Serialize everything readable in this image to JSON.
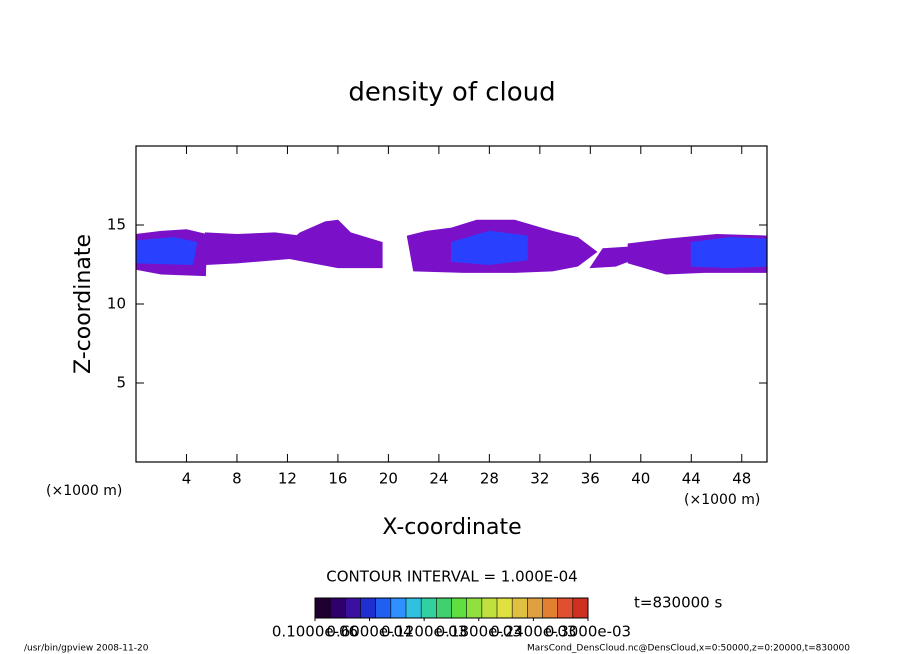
{
  "chart_data": {
    "type": "contour",
    "title": "density of cloud",
    "x_label": "X-coordinate",
    "y_label": "Z-coordinate",
    "x_unit": "(×1000 m)",
    "xlim": [
      0,
      50
    ],
    "ylim": [
      0,
      20
    ],
    "xticks": [
      4,
      8,
      12,
      16,
      20,
      24,
      28,
      32,
      36,
      40,
      44,
      48
    ],
    "yticks": [
      5,
      10,
      15
    ],
    "contour_interval": "CONTOUR INTERVAL = 1.000E-04",
    "time_label": "t=830000 s",
    "regions": [
      {
        "color": "#7a10c8",
        "x": [
          0,
          2,
          5.5,
          5.6,
          4,
          2,
          0
        ],
        "z": [
          12.2,
          11.9,
          11.8,
          14.4,
          14.7,
          14.6,
          14.4
        ]
      },
      {
        "color": "#2a40ff",
        "x": [
          0,
          4.5,
          4.8,
          3,
          0
        ],
        "z": [
          12.6,
          12.5,
          13.9,
          14.2,
          14.0
        ]
      },
      {
        "color": "#7a10c8",
        "x": [
          5.5,
          8,
          11,
          14,
          14,
          11,
          8,
          5.5
        ],
        "z": [
          12.5,
          12.6,
          12.8,
          13.0,
          14.2,
          14.5,
          14.4,
          14.5
        ]
      },
      {
        "color": "#7a10c8",
        "x": [
          12,
          16,
          19.5,
          19.5,
          17,
          16,
          15,
          13,
          12
        ],
        "z": [
          12.9,
          12.3,
          12.3,
          13.9,
          14.5,
          15.3,
          15.2,
          14.5,
          13.8
        ]
      },
      {
        "color": "#7a10c8",
        "x": [
          22,
          26,
          30,
          33,
          35,
          36.5,
          35,
          33,
          30,
          27,
          25,
          23,
          21.5
        ],
        "z": [
          12.1,
          12.0,
          12.0,
          12.1,
          12.4,
          13.3,
          14.2,
          14.6,
          15.3,
          15.3,
          14.8,
          14.6,
          14.3
        ]
      },
      {
        "color": "#2a40ff",
        "x": [
          25,
          28,
          31,
          31,
          28,
          25
        ],
        "z": [
          12.7,
          12.5,
          12.8,
          14.3,
          14.6,
          13.9
        ]
      },
      {
        "color": "#7a10c8",
        "x": [
          36,
          38,
          40,
          39,
          37
        ],
        "z": [
          12.3,
          12.4,
          13.0,
          13.6,
          13.5
        ]
      },
      {
        "color": "#7a10c8",
        "x": [
          39,
          42,
          45,
          50,
          50,
          46,
          42,
          39
        ],
        "z": [
          12.6,
          11.9,
          12.0,
          12.0,
          14.3,
          14.4,
          14.1,
          13.8
        ]
      },
      {
        "color": "#2a40ff",
        "x": [
          44,
          47,
          50,
          50,
          47,
          44
        ],
        "z": [
          12.4,
          12.3,
          12.4,
          14.1,
          14.2,
          13.9
        ]
      }
    ],
    "colorbar": {
      "colors": [
        "#200030",
        "#30006a",
        "#3a10a0",
        "#2030d0",
        "#2060f0",
        "#3090ff",
        "#30c0e0",
        "#30d0a0",
        "#40d070",
        "#60e040",
        "#90e040",
        "#c0e040",
        "#e0e040",
        "#e0c040",
        "#e0a040",
        "#e08030",
        "#e05030",
        "#d03020"
      ],
      "levels": [
        {
          "value": 1e-07,
          "label": "0.1000e-06"
        },
        {
          "value": 6e-05,
          "label": "0.6000e-04"
        },
        {
          "value": 0.00012,
          "label": "0.1200e-03"
        },
        {
          "value": 0.00018,
          "label": "0.1800e-03"
        },
        {
          "value": 0.00024,
          "label": "0.2400e-03"
        },
        {
          "value": 0.0003,
          "label": "0.3000e-03"
        }
      ]
    },
    "footer_left": "/usr/bin/gpview  2008-11-20",
    "footer_right": "MarsCond_DensCloud.nc@DensCloud,x=0:50000,z=0:20000,t=830000"
  }
}
